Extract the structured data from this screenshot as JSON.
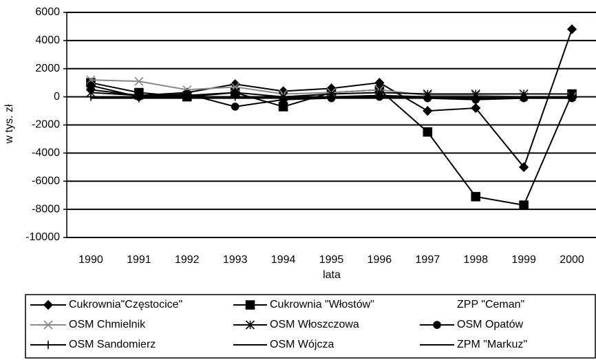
{
  "chart_data": {
    "type": "line",
    "y_label": "w tys. zł",
    "x_label": "lata",
    "categories": [
      "1990",
      "1991",
      "1992",
      "1993",
      "1994",
      "1995",
      "1996",
      "1997",
      "1998",
      "1999",
      "2000"
    ],
    "ylim": [
      -10000,
      6000
    ],
    "yticks": [
      -10000,
      -8000,
      -6000,
      -4000,
      -2000,
      0,
      2000,
      4000,
      6000
    ],
    "grid": true,
    "legend": "bottom",
    "series": [
      {
        "name": "Cukrownia\"Częstocice\"",
        "color": "#000000",
        "marker": "diamond",
        "values": [
          500,
          100,
          300,
          900,
          400,
          600,
          1000,
          -1000,
          -800,
          -5000,
          4800
        ]
      },
      {
        "name": "Cukrownia \"Włostów\"",
        "color": "#000000",
        "marker": "square",
        "values": [
          1000,
          300,
          0,
          300,
          -700,
          300,
          500,
          -2500,
          -7100,
          -7700,
          200
        ]
      },
      {
        "name": "ZPP \"Ceman\"",
        "color": "#000000",
        "marker": "none",
        "values": [
          null,
          null,
          null,
          null,
          null,
          null,
          null,
          null,
          null,
          null,
          null
        ]
      },
      {
        "name": "OSM Chmielnik",
        "color": "#888888",
        "marker": "x",
        "values": [
          1200,
          1100,
          500,
          700,
          200,
          300,
          500,
          100,
          100,
          0,
          0
        ]
      },
      {
        "name": "OSM Włoszczowa",
        "color": "#000000",
        "marker": "star",
        "values": [
          300,
          100,
          100,
          300,
          0,
          200,
          300,
          200,
          200,
          200,
          200
        ]
      },
      {
        "name": "OSM Opatów",
        "color": "#000000",
        "marker": "circle",
        "values": [
          800,
          0,
          200,
          -700,
          -200,
          -100,
          0,
          -100,
          -200,
          -100,
          -100
        ]
      },
      {
        "name": "OSM Sandomierz",
        "color": "#000000",
        "marker": "plus",
        "values": [
          0,
          -100,
          0,
          0,
          -100,
          0,
          100,
          0,
          0,
          0,
          0
        ]
      },
      {
        "name": "OSM Wójcza",
        "color": "#000000",
        "marker": "dash",
        "values": [
          0,
          0,
          0,
          0,
          0,
          0,
          0,
          0,
          0,
          0,
          0
        ]
      },
      {
        "name": "ZPM \"Markuz\"",
        "color": "#000000",
        "marker": "none",
        "values": [
          -100,
          -100,
          -100,
          -100,
          -100,
          -100,
          -100,
          -100,
          -100,
          -100,
          -100
        ]
      }
    ]
  }
}
